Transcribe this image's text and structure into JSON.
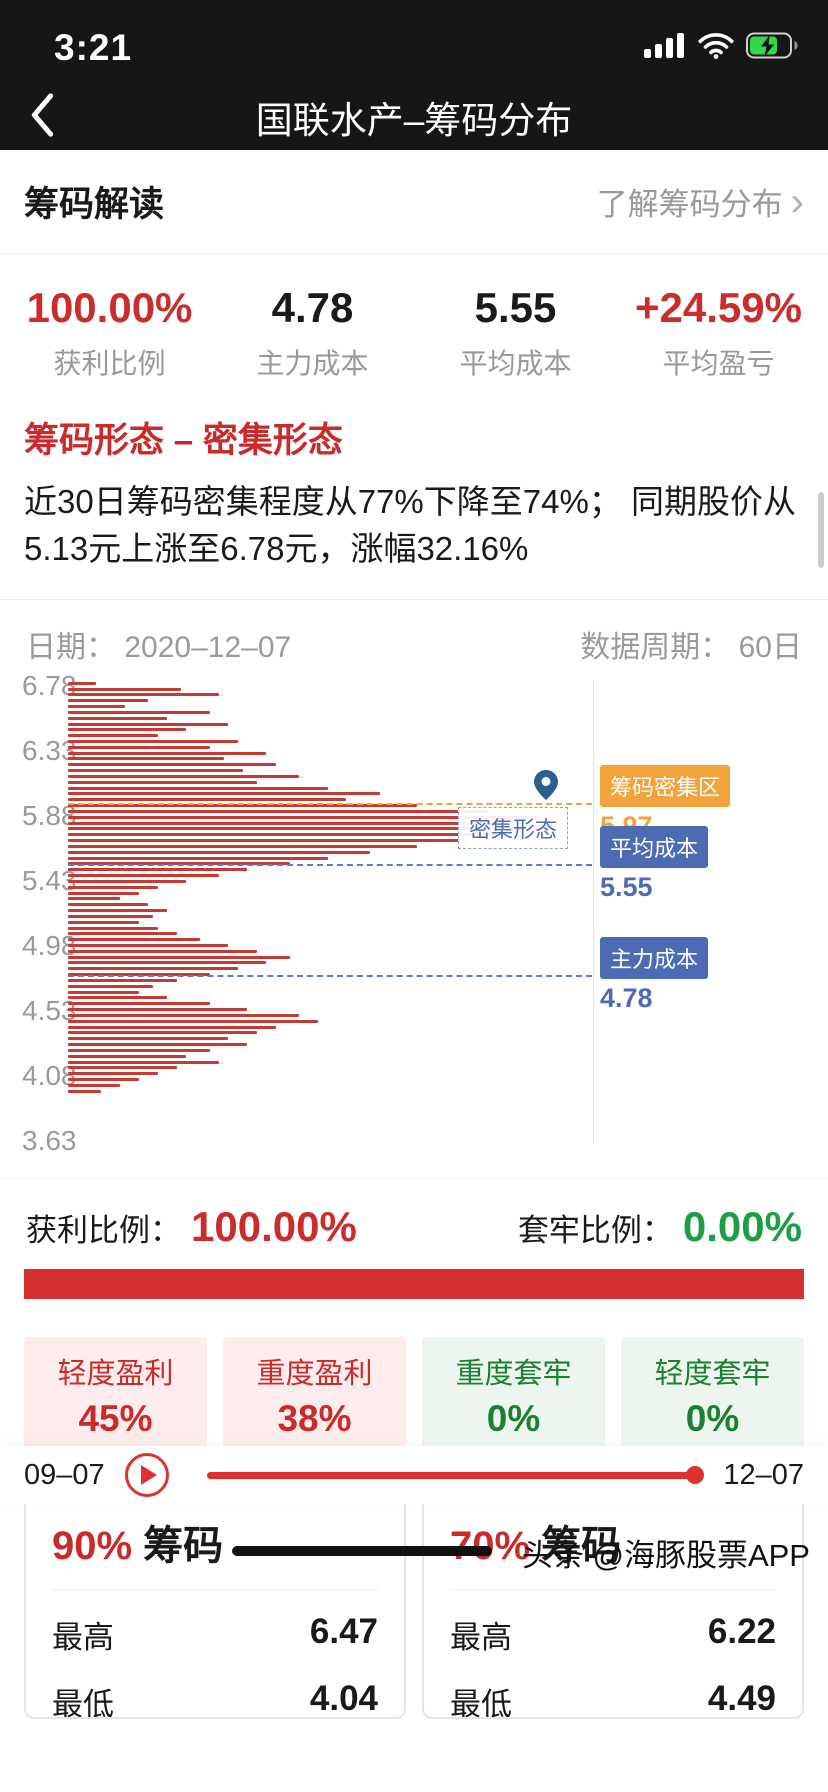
{
  "status_bar": {
    "time": "3:21"
  },
  "nav": {
    "title": "国联水产–筹码分布"
  },
  "header": {
    "title": "筹码解读",
    "link": "了解筹码分布",
    "chevron": "›"
  },
  "stats": [
    {
      "value": "100.00%",
      "label": "获利比例",
      "color": "red"
    },
    {
      "value": "4.78",
      "label": "主力成本",
      "color": "dark"
    },
    {
      "value": "5.55",
      "label": "平均成本",
      "color": "dark"
    },
    {
      "value": "+24.59%",
      "label": "平均盈亏",
      "color": "red"
    }
  ],
  "pattern": {
    "title": "筹码形态 – 密集形态",
    "desc": "近30日筹码密集程度从77%下降至74%； 同期股价从5.13元上涨至6.78元，涨幅32.16%"
  },
  "chart": {
    "date_label": "日期：",
    "date": "2020–12–07",
    "period_label": "数据周期：",
    "period": "60日",
    "y_ticks": [
      "6.78",
      "6.33",
      "5.88",
      "5.43",
      "4.98",
      "4.53",
      "4.08",
      "3.63"
    ],
    "annotations": {
      "dense_zone_label": "筹码密集区",
      "dense_zone_value": "5.97",
      "avg_cost_label": "平均成本",
      "avg_cost_value": "5.55",
      "main_cost_label": "主力成本",
      "main_cost_value": "4.78",
      "pattern_label": "密集形态"
    }
  },
  "ratio_row": {
    "profit_label": "获利比例：",
    "profit_value": "100.00%",
    "trapped_label": "套牢比例：",
    "trapped_value": "0.00%"
  },
  "boxes": [
    {
      "label": "轻度盈利",
      "value": "45%",
      "type": "red"
    },
    {
      "label": "重度盈利",
      "value": "38%",
      "type": "red"
    },
    {
      "label": "重度套牢",
      "value": "0%",
      "type": "green"
    },
    {
      "label": "轻度套牢",
      "value": "0%",
      "type": "green"
    }
  ],
  "cards": [
    {
      "percent": "90%",
      "title": "筹码",
      "rows": [
        {
          "label": "最高",
          "value": "6.47"
        },
        {
          "label": "最低",
          "value": "4.04"
        }
      ]
    },
    {
      "percent": "70%",
      "title": "筹码",
      "rows": [
        {
          "label": "最高",
          "value": "6.22"
        },
        {
          "label": "最低",
          "value": "4.49"
        }
      ]
    }
  ],
  "player": {
    "start": "09–07",
    "end": "12–07"
  },
  "footer": {
    "watermark": "头条 @海豚股票APP"
  },
  "colors": {
    "accent_red": "#cb2c2c",
    "bar_red": "#c63a36",
    "orange": "#f2a33c",
    "blue": "#4d6bb3",
    "green": "#1f9d46"
  },
  "chart_data": {
    "type": "bar",
    "orientation": "horizontal",
    "title": "筹码分布 (chip distribution by price)",
    "date": "2020–12–07",
    "period": "60日",
    "price_axis_ticks": [
      6.78,
      6.33,
      5.88,
      5.43,
      4.98,
      4.53,
      4.08,
      3.63
    ],
    "price_range": [
      3.63,
      6.78
    ],
    "bar_lengths_percent": [
      6,
      24,
      32,
      17,
      12,
      30,
      21,
      34,
      25,
      19,
      36,
      30,
      42,
      33,
      44,
      37,
      49,
      40,
      55,
      66,
      59,
      74,
      89,
      100,
      93,
      97,
      91,
      83,
      74,
      64,
      55,
      47,
      38,
      32,
      25,
      19,
      15,
      11,
      17,
      21,
      18,
      15,
      19,
      23,
      28,
      34,
      40,
      47,
      42,
      36,
      30,
      23,
      18,
      15,
      21,
      30,
      38,
      49,
      53,
      44,
      40,
      34,
      38,
      30,
      25,
      32,
      23,
      19,
      15,
      11,
      7
    ],
    "markers": [
      {
        "label": "筹码密集区",
        "price": 5.97,
        "color": "#f2a33c"
      },
      {
        "label": "平均成本",
        "price": 5.55,
        "color": "#4d6bb3"
      },
      {
        "label": "主力成本",
        "price": 4.78,
        "color": "#4d6bb3"
      }
    ],
    "annotation": "密集形态",
    "legend_position": "right",
    "grid": false
  }
}
